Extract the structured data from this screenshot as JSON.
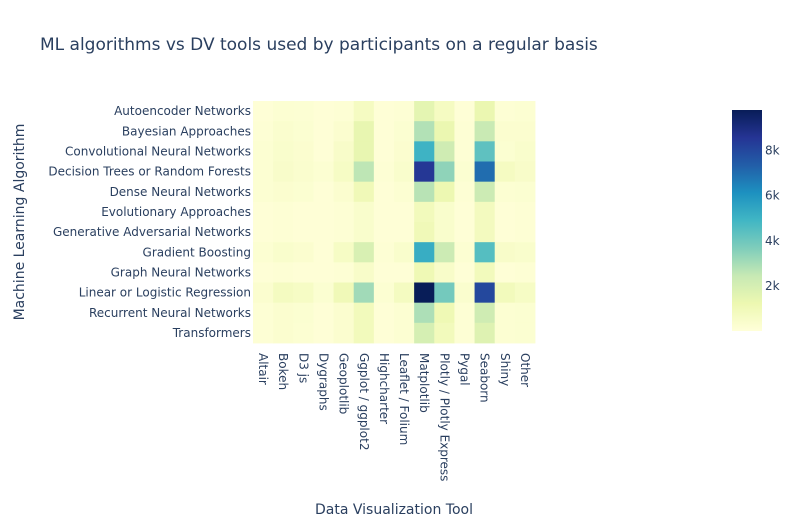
{
  "chart_data": {
    "type": "heatmap",
    "title": "ML algorithms vs DV tools used by participants on a regular basis",
    "xlabel": "Data Visualization Tool",
    "ylabel": "Machine Learning Algorithm",
    "x": [
      "Altair",
      "Bokeh",
      "D3 js",
      "Dygraphs",
      "Geoplotlib",
      "Ggplot / ggplot2",
      "Highcharter",
      "Leaflet / Folium",
      "Matplotlib",
      "Plotly / Plotly Express",
      "Pygal",
      "Seaborn",
      "Shiny",
      "Other"
    ],
    "y": [
      "Autoencoder Networks",
      "Bayesian Approaches",
      "Convolutional Neural Networks",
      "Decision Trees or Random Forests",
      "Dense Neural Networks",
      "Evolutionary Approaches",
      "Generative Adversarial Networks",
      "Gradient Boosting",
      "Graph Neural Networks",
      "Linear or Logistic Regression",
      "Recurrent Neural Networks",
      "Transformers"
    ],
    "z": [
      [
        100,
        200,
        180,
        100,
        150,
        700,
        100,
        150,
        1500,
        700,
        100,
        1300,
        150,
        200
      ],
      [
        150,
        350,
        250,
        100,
        300,
        1400,
        100,
        250,
        2800,
        1300,
        150,
        2400,
        300,
        300
      ],
      [
        200,
        400,
        300,
        100,
        500,
        1400,
        100,
        300,
        5000,
        2200,
        150,
        4300,
        250,
        400
      ],
      [
        200,
        450,
        350,
        200,
        600,
        2600,
        150,
        400,
        8500,
        3400,
        250,
        7000,
        700,
        500
      ],
      [
        200,
        300,
        250,
        100,
        300,
        1000,
        100,
        200,
        2700,
        1200,
        150,
        2300,
        200,
        250
      ],
      [
        100,
        150,
        100,
        100,
        150,
        400,
        100,
        100,
        900,
        400,
        100,
        800,
        100,
        150
      ],
      [
        100,
        150,
        100,
        100,
        150,
        400,
        100,
        100,
        1000,
        400,
        100,
        800,
        100,
        150
      ],
      [
        200,
        400,
        300,
        100,
        600,
        1900,
        150,
        400,
        5200,
        2300,
        200,
        4500,
        500,
        400
      ],
      [
        100,
        150,
        100,
        100,
        150,
        500,
        100,
        100,
        1100,
        500,
        100,
        900,
        100,
        150
      ],
      [
        300,
        750,
        600,
        250,
        1000,
        3100,
        200,
        750,
        9800,
        3900,
        350,
        8000,
        900,
        600
      ],
      [
        150,
        300,
        250,
        100,
        300,
        900,
        100,
        200,
        2900,
        1100,
        150,
        2200,
        200,
        250
      ],
      [
        150,
        300,
        200,
        100,
        300,
        900,
        100,
        200,
        2000,
        900,
        150,
        1700,
        200,
        250
      ]
    ],
    "zmin": 0,
    "zmax": 9800,
    "colorscale": "YlGnBu",
    "colorbar_ticks": [
      "2k",
      "4k",
      "6k",
      "8k"
    ],
    "colorbar_tick_values": [
      2000,
      4000,
      6000,
      8000
    ]
  }
}
